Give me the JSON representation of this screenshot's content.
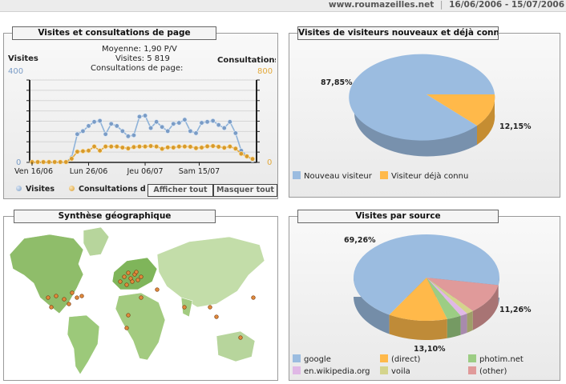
{
  "header": {
    "site": "www.roumazeilles.net",
    "separator": "|",
    "date_range": "16/06/2006 - 15/07/2006"
  },
  "panel_visits": {
    "title": "Visites et consultations de page",
    "stats_line1": "Moyenne: 1,90 P/V",
    "stats_line2": "Visites: 5 819",
    "stats_line3": "Consultations de page:",
    "left_axis_label": "Visites",
    "right_axis_label": "Consultations",
    "left_max": "400",
    "right_max": "800",
    "left_zero": "0",
    "right_zero": "0",
    "legend_visits": "Visites",
    "legend_pages": "Consultations de",
    "show_all": "Afficher tout",
    "hide_all": "Masquer tout",
    "colors": {
      "visits": "#8fb3d9",
      "pages": "#e3a93b"
    }
  },
  "panel_new_visitors": {
    "title": "Visites de visiteurs nouveaux et déjà connu",
    "pct_new": "87,85%",
    "pct_returning": "12,15%",
    "legend_new": "Nouveau visiteur",
    "legend_returning": "Visiteur déjà connu"
  },
  "panel_geo": {
    "title": "Synthèse géographique"
  },
  "panel_source": {
    "title": "Visites par source",
    "pct_google": "69,26%",
    "pct_direct": "13,10%",
    "pct_other": "11,26%",
    "legend": [
      {
        "label": "google",
        "color": "#9bbce0"
      },
      {
        "label": "(direct)",
        "color": "#ffb94a"
      },
      {
        "label": "photim.net",
        "color": "#9ccd84"
      },
      {
        "label": "en.wikipedia.org",
        "color": "#e0b8e6"
      },
      {
        "label": "voila",
        "color": "#d4d48c"
      },
      {
        "label": "(other)",
        "color": "#e09a9a"
      }
    ]
  },
  "chart_data": [
    {
      "type": "line",
      "x_ticks": [
        "Ven 16/06",
        "Lun 26/06",
        "Jeu 06/07",
        "Sam 15/07"
      ],
      "series": [
        {
          "name": "Visites",
          "axis": "left",
          "values": [
            0,
            0,
            0,
            0,
            0,
            0,
            0,
            22,
            135,
            150,
            175,
            195,
            200,
            135,
            185,
            175,
            150,
            125,
            130,
            220,
            225,
            165,
            195,
            170,
            150,
            185,
            190,
            205,
            150,
            140,
            190,
            195,
            200,
            180,
            165,
            195,
            140,
            55,
            30,
            10
          ],
          "ylim": [
            0,
            400
          ]
        },
        {
          "name": "Consultations de page",
          "axis": "right",
          "values": [
            0,
            0,
            0,
            0,
            0,
            0,
            0,
            32,
            100,
            105,
            110,
            150,
            110,
            150,
            150,
            150,
            140,
            132,
            145,
            150,
            150,
            155,
            150,
            128,
            142,
            140,
            150,
            150,
            148,
            135,
            140,
            152,
            155,
            148,
            138,
            150,
            130,
            80,
            55,
            30
          ],
          "ylim": [
            0,
            800
          ]
        }
      ]
    },
    {
      "type": "pie",
      "labels": [
        "Nouveau visiteur",
        "Visiteur déjà connu"
      ],
      "values": [
        87.85,
        12.15
      ],
      "colors": [
        "#9bbce0",
        "#ffb94a"
      ]
    },
    {
      "type": "pie",
      "labels": [
        "google",
        "(direct)",
        "photim.net",
        "en.wikipedia.org",
        "voila",
        "(other)"
      ],
      "values": [
        69.26,
        13.1,
        3.2,
        1.6,
        1.58,
        11.26
      ],
      "colors": [
        "#9bbce0",
        "#ffb94a",
        "#9ccd84",
        "#e0b8e6",
        "#d4d48c",
        "#e09a9a"
      ]
    }
  ]
}
